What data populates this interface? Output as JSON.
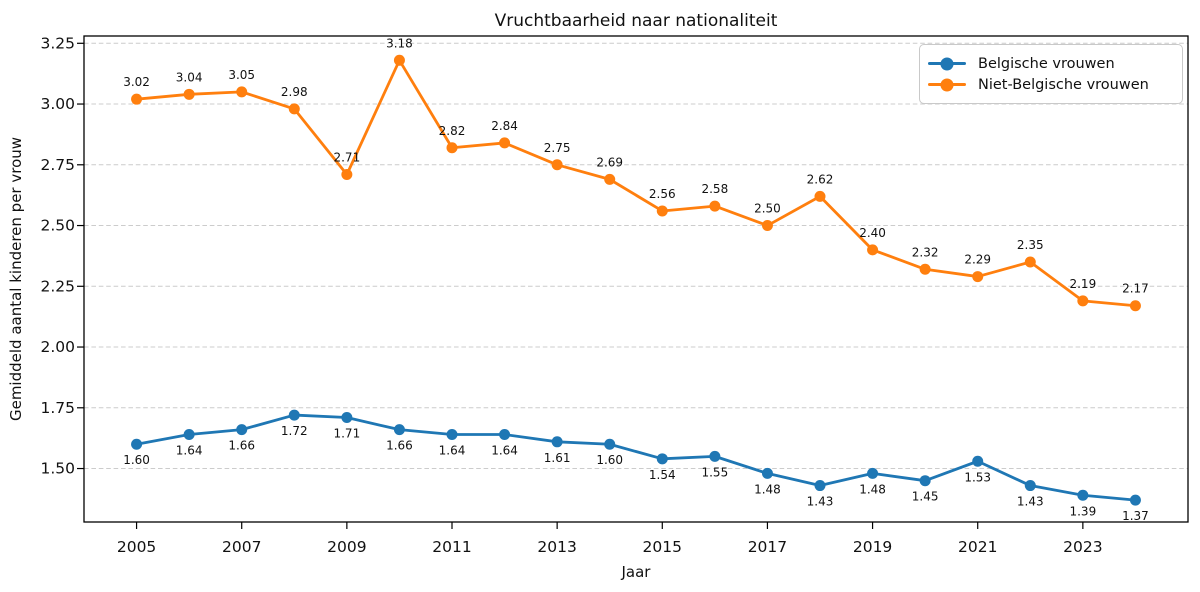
{
  "chart_data": {
    "type": "line",
    "title": "Vruchtbaarheid naar nationaliteit",
    "xlabel": "Jaar",
    "ylabel": "Gemiddeld aantal kinderen per vrouw",
    "x": [
      2005,
      2006,
      2007,
      2008,
      2009,
      2010,
      2011,
      2012,
      2013,
      2014,
      2015,
      2016,
      2017,
      2018,
      2019,
      2020,
      2021,
      2022,
      2023,
      2024
    ],
    "series": [
      {
        "name": "Belgische vrouwen",
        "color": "#1f77b4",
        "value_labels": "below",
        "values": [
          1.6,
          1.64,
          1.66,
          1.72,
          1.71,
          1.66,
          1.64,
          1.64,
          1.61,
          1.6,
          1.54,
          1.55,
          1.48,
          1.43,
          1.48,
          1.45,
          1.53,
          1.43,
          1.39,
          1.37
        ]
      },
      {
        "name": "Niet-Belgische vrouwen",
        "color": "#ff7f0e",
        "value_labels": "above",
        "values": [
          3.02,
          3.04,
          3.05,
          2.98,
          2.71,
          3.18,
          2.82,
          2.84,
          2.75,
          2.69,
          2.56,
          2.58,
          2.5,
          2.62,
          2.4,
          2.32,
          2.29,
          2.35,
          2.19,
          2.17
        ]
      }
    ],
    "xticks": [
      2005,
      2007,
      2009,
      2011,
      2013,
      2015,
      2017,
      2019,
      2021,
      2023
    ],
    "yticks": [
      1.5,
      1.75,
      2.0,
      2.25,
      2.5,
      2.75,
      3.0,
      3.25
    ],
    "xlim": [
      2004,
      2025
    ],
    "ylim": [
      1.28,
      3.28
    ],
    "grid": {
      "axis": "y",
      "style": "dashed",
      "color": "#cccccc"
    },
    "legend": {
      "position": "upper right"
    },
    "value_label_format": "2-decimals",
    "text_color": "#111111",
    "spine_color": "#000000"
  }
}
